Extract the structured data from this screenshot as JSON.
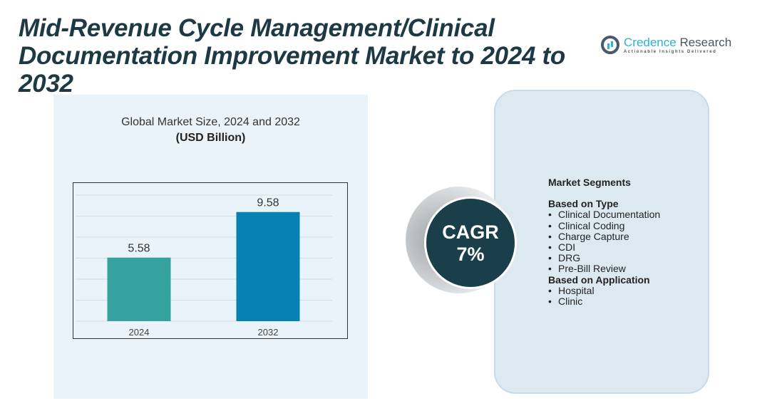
{
  "title": "Mid-Revenue Cycle Management/Clinical Documentation Improvement Market to 2024 to 2032",
  "logo": {
    "name_part1": "Credence",
    "name_part2": " Research",
    "tagline": "Actionable Insights Delivered"
  },
  "chart_data": {
    "type": "bar",
    "title": "Global Market Size, 2024 and 2032",
    "subtitle": "(USD Billion)",
    "categories": [
      "2024",
      "2032"
    ],
    "values": [
      5.58,
      9.58
    ],
    "value_labels": [
      "5.58",
      "9.58"
    ],
    "colors": [
      "#35a29f",
      "#0780b2"
    ],
    "ylim": [
      0,
      11
    ],
    "grid": true,
    "xlabel": "",
    "ylabel": ""
  },
  "cagr": {
    "label": "CAGR",
    "value": "7%"
  },
  "segments": {
    "heading": "Market Segments",
    "groups": [
      {
        "title": "Based on Type",
        "items": [
          "Clinical Documentation",
          "Clinical Coding",
          "Charge Capture",
          "CDI",
          "DRG",
          "Pre-Bill Review"
        ]
      },
      {
        "title": "Based on Application",
        "items": [
          "Hospital",
          "Clinic"
        ]
      }
    ]
  }
}
